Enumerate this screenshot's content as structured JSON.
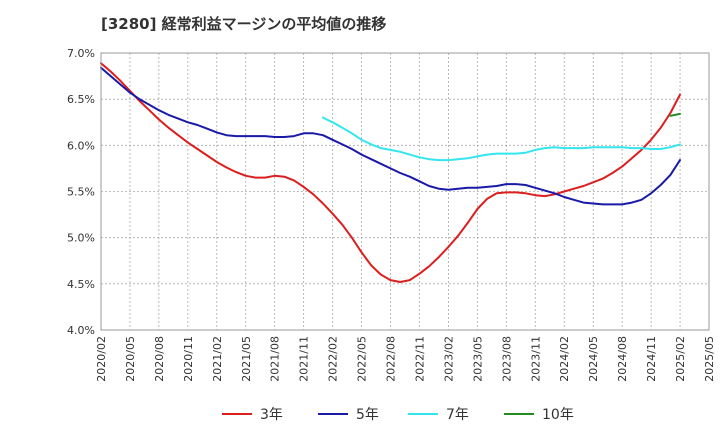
{
  "chart_data": {
    "type": "line",
    "title": "[3280]  経常利益マージンの平均値の推移",
    "xlabel": "",
    "ylabel": "",
    "ylim": [
      4.0,
      7.0
    ],
    "y_ticks": [
      "4.0%",
      "4.5%",
      "5.0%",
      "5.5%",
      "6.0%",
      "6.5%",
      "7.0%"
    ],
    "y_tick_values": [
      4.0,
      4.5,
      5.0,
      5.5,
      6.0,
      6.5,
      7.0
    ],
    "x_ticks": [
      "2020/02",
      "2020/05",
      "2020/08",
      "2020/11",
      "2021/02",
      "2021/05",
      "2021/08",
      "2021/11",
      "2022/02",
      "2022/05",
      "2022/08",
      "2022/11",
      "2023/02",
      "2023/05",
      "2023/08",
      "2023/11",
      "2024/02",
      "2024/05",
      "2024/08",
      "2024/11",
      "2025/02",
      "2025/05"
    ],
    "grid": true,
    "legend_position": "bottom",
    "series": [
      {
        "name": "3年",
        "color": "#dd1e1e",
        "x": [
          "2020/02",
          "2020/03",
          "2020/04",
          "2020/05",
          "2020/06",
          "2020/07",
          "2020/08",
          "2020/09",
          "2020/10",
          "2020/11",
          "2020/12",
          "2021/01",
          "2021/02",
          "2021/03",
          "2021/04",
          "2021/05",
          "2021/06",
          "2021/07",
          "2021/08",
          "2021/09",
          "2021/10",
          "2021/11",
          "2021/12",
          "2022/01",
          "2022/02",
          "2022/03",
          "2022/04",
          "2022/05",
          "2022/06",
          "2022/07",
          "2022/08",
          "2022/09",
          "2022/10",
          "2022/11",
          "2022/12",
          "2023/01",
          "2023/02",
          "2023/03",
          "2023/04",
          "2023/05",
          "2023/06",
          "2023/07",
          "2023/08",
          "2023/09",
          "2023/10",
          "2023/11",
          "2023/12",
          "2024/01",
          "2024/02",
          "2024/03",
          "2024/04",
          "2024/05",
          "2024/06",
          "2024/07",
          "2024/08",
          "2024/09",
          "2024/10",
          "2024/11",
          "2024/12",
          "2025/01",
          "2025/02"
        ],
        "values": [
          6.89,
          6.8,
          6.7,
          6.59,
          6.48,
          6.38,
          6.28,
          6.19,
          6.11,
          6.03,
          5.96,
          5.89,
          5.82,
          5.76,
          5.71,
          5.67,
          5.65,
          5.65,
          5.67,
          5.66,
          5.62,
          5.55,
          5.47,
          5.37,
          5.26,
          5.14,
          5.0,
          4.84,
          4.7,
          4.6,
          4.54,
          4.52,
          4.54,
          4.61,
          4.69,
          4.79,
          4.9,
          5.02,
          5.16,
          5.31,
          5.42,
          5.48,
          5.49,
          5.49,
          5.48,
          5.46,
          5.45,
          5.47,
          5.5,
          5.53,
          5.56,
          5.6,
          5.64,
          5.7,
          5.77,
          5.86,
          5.95,
          6.06,
          6.19,
          6.35,
          6.55
        ]
      },
      {
        "name": "5年",
        "color": "#1a1aa8",
        "x": [
          "2020/02",
          "2020/03",
          "2020/04",
          "2020/05",
          "2020/06",
          "2020/07",
          "2020/08",
          "2020/09",
          "2020/10",
          "2020/11",
          "2020/12",
          "2021/01",
          "2021/02",
          "2021/03",
          "2021/04",
          "2021/05",
          "2021/06",
          "2021/07",
          "2021/08",
          "2021/09",
          "2021/10",
          "2021/11",
          "2021/12",
          "2022/01",
          "2022/02",
          "2022/03",
          "2022/04",
          "2022/05",
          "2022/06",
          "2022/07",
          "2022/08",
          "2022/09",
          "2022/10",
          "2022/11",
          "2022/12",
          "2023/01",
          "2023/02",
          "2023/03",
          "2023/04",
          "2023/05",
          "2023/06",
          "2023/07",
          "2023/08",
          "2023/09",
          "2023/10",
          "2023/11",
          "2023/12",
          "2024/01",
          "2024/02",
          "2024/03",
          "2024/04",
          "2024/05",
          "2024/06",
          "2024/07",
          "2024/08",
          "2024/09",
          "2024/10",
          "2024/11",
          "2024/12",
          "2025/01",
          "2025/02"
        ],
        "values": [
          6.84,
          6.75,
          6.66,
          6.57,
          6.5,
          6.44,
          6.38,
          6.33,
          6.29,
          6.25,
          6.22,
          6.18,
          6.14,
          6.11,
          6.1,
          6.1,
          6.1,
          6.1,
          6.09,
          6.09,
          6.1,
          6.13,
          6.13,
          6.11,
          6.06,
          6.01,
          5.96,
          5.9,
          5.85,
          5.8,
          5.75,
          5.7,
          5.66,
          5.61,
          5.56,
          5.53,
          5.52,
          5.53,
          5.54,
          5.54,
          5.55,
          5.56,
          5.58,
          5.58,
          5.57,
          5.54,
          5.51,
          5.48,
          5.44,
          5.41,
          5.38,
          5.37,
          5.36,
          5.36,
          5.36,
          5.38,
          5.41,
          5.48,
          5.57,
          5.68,
          5.84
        ]
      },
      {
        "name": "7年",
        "color": "#33e6ee",
        "x": [
          "2022/01",
          "2022/02",
          "2022/03",
          "2022/04",
          "2022/05",
          "2022/06",
          "2022/07",
          "2022/08",
          "2022/09",
          "2022/10",
          "2022/11",
          "2022/12",
          "2023/01",
          "2023/02",
          "2023/03",
          "2023/04",
          "2023/05",
          "2023/06",
          "2023/07",
          "2023/08",
          "2023/09",
          "2023/10",
          "2023/11",
          "2023/12",
          "2024/01",
          "2024/02",
          "2024/03",
          "2024/04",
          "2024/05",
          "2024/06",
          "2024/07",
          "2024/08",
          "2024/09",
          "2024/10",
          "2024/11",
          "2024/12",
          "2025/01",
          "2025/02"
        ],
        "values": [
          6.3,
          6.25,
          6.19,
          6.13,
          6.06,
          6.01,
          5.97,
          5.95,
          5.93,
          5.9,
          5.87,
          5.85,
          5.84,
          5.84,
          5.85,
          5.86,
          5.88,
          5.9,
          5.91,
          5.91,
          5.91,
          5.92,
          5.95,
          5.97,
          5.98,
          5.97,
          5.97,
          5.97,
          5.98,
          5.98,
          5.98,
          5.98,
          5.97,
          5.97,
          5.96,
          5.96,
          5.98,
          6.01
        ]
      },
      {
        "name": "10年",
        "color": "#228b22",
        "x": [
          "2025/01",
          "2025/02"
        ],
        "values": [
          6.32,
          6.34
        ]
      }
    ]
  }
}
